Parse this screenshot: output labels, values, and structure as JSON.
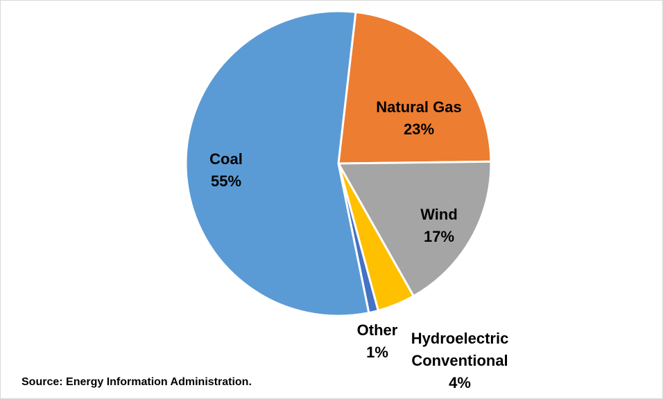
{
  "chart_data": {
    "type": "pie",
    "categories": [
      "Natural Gas",
      "Wind",
      "Hydroelectric Conventional",
      "Other",
      "Coal"
    ],
    "values": [
      23,
      17,
      4,
      1,
      55
    ],
    "value_labels": [
      "23%",
      "17%",
      "4%",
      "1%",
      "55%"
    ],
    "colors": [
      "#ed7d31",
      "#a5a5a5",
      "#ffc000",
      "#4472c4",
      "#5b9bd5"
    ],
    "source": "Source: Energy Information Administration."
  }
}
